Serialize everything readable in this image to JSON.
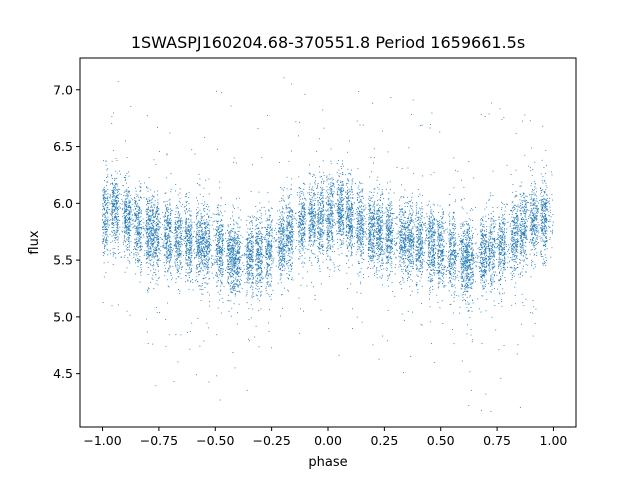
{
  "chart_data": {
    "type": "scatter",
    "title": "1SWASPJ160204.68-370551.8 Period 1659661.5s",
    "xlabel": "phase",
    "ylabel": "flux",
    "xlim": [
      -1.1,
      1.1
    ],
    "ylim": [
      4.03,
      7.28
    ],
    "xticks": [
      -1.0,
      -0.75,
      -0.5,
      -0.25,
      0.0,
      0.25,
      0.5,
      0.75,
      1.0
    ],
    "xtick_labels": [
      "−1.00",
      "−0.75",
      "−0.50",
      "−0.25",
      "0.00",
      "0.25",
      "0.50",
      "0.75",
      "1.00"
    ],
    "yticks": [
      4.5,
      5.0,
      5.5,
      6.0,
      6.5,
      7.0
    ],
    "ytick_labels": [
      "4.5",
      "5.0",
      "5.5",
      "6.0",
      "6.5",
      "7.0"
    ],
    "grid": false,
    "marker_color": "#1f77b4",
    "series": [
      {
        "x_range": [
          -1.0,
          1.0
        ],
        "periodic_in_phase": true,
        "approx_point_count": 12000,
        "approx_profile": [
          {
            "x": -1.0,
            "y": 5.85
          },
          {
            "x": -0.95,
            "y": 5.95
          },
          {
            "x": -0.85,
            "y": 5.8
          },
          {
            "x": -0.75,
            "y": 5.72
          },
          {
            "x": -0.6,
            "y": 5.65
          },
          {
            "x": -0.5,
            "y": 5.6
          },
          {
            "x": -0.4,
            "y": 5.5
          },
          {
            "x": -0.3,
            "y": 5.55
          },
          {
            "x": -0.2,
            "y": 5.65
          },
          {
            "x": -0.1,
            "y": 5.85
          },
          {
            "x": 0.0,
            "y": 5.85
          },
          {
            "x": 0.05,
            "y": 5.95
          },
          {
            "x": 0.15,
            "y": 5.8
          },
          {
            "x": 0.25,
            "y": 5.72
          },
          {
            "x": 0.4,
            "y": 5.65
          },
          {
            "x": 0.5,
            "y": 5.6
          },
          {
            "x": 0.6,
            "y": 5.5
          },
          {
            "x": 0.7,
            "y": 5.55
          },
          {
            "x": 0.8,
            "y": 5.65
          },
          {
            "x": 0.9,
            "y": 5.85
          },
          {
            "x": 1.0,
            "y": 5.85
          }
        ]
      }
    ]
  }
}
